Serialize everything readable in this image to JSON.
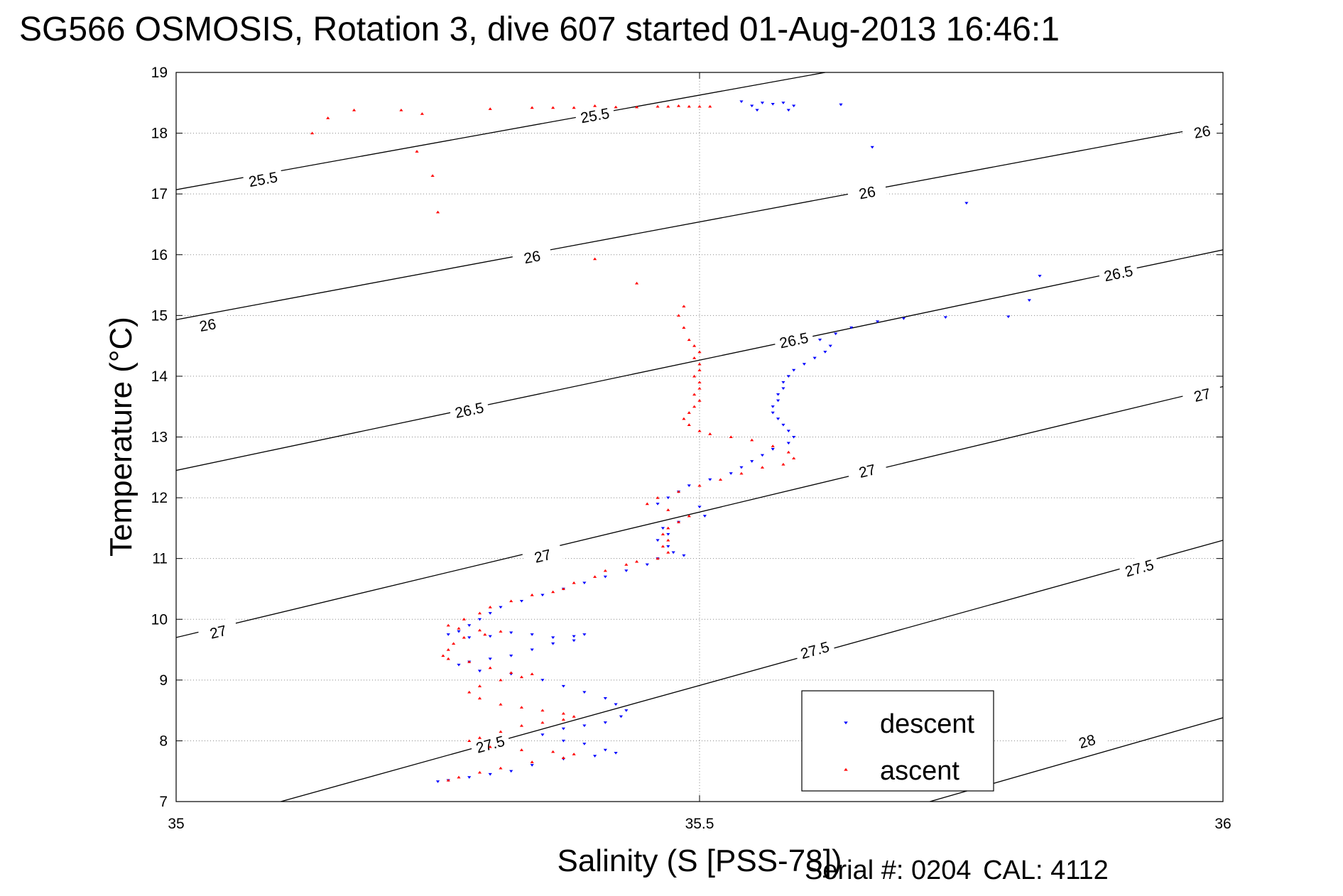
{
  "title": "SG566 OSMOSIS, Rotation 3, dive 607 started 01-Aug-2013 16:46:1",
  "footer": {
    "serial_label": "Serial #: 0204",
    "cal_label": "CAL: 4112"
  },
  "colors": {
    "descent": "#0000ff",
    "ascent": "#ff0000",
    "contour": "#000000",
    "grid": "#888888"
  },
  "chart_data": {
    "type": "scatter",
    "title": "SG566 OSMOSIS, Rotation 3, dive 607 started 01-Aug-2013 16:46:1",
    "xlabel": "Salinity (S [PSS-78])",
    "ylabel": "Temperature (°C)",
    "xlim": [
      35,
      36
    ],
    "ylim": [
      7,
      19
    ],
    "xticks": [
      35,
      35.5,
      36
    ],
    "xtick_labels": [
      "35",
      "35.5",
      "36"
    ],
    "yticks": [
      7,
      8,
      9,
      10,
      11,
      12,
      13,
      14,
      15,
      16,
      17,
      18,
      19
    ],
    "ytick_labels": [
      "7",
      "8",
      "9",
      "10",
      "11",
      "12",
      "13",
      "14",
      "15",
      "16",
      "17",
      "18",
      "19"
    ],
    "grid": true,
    "legend_position": "bottom-right",
    "contours": [
      {
        "level": "25.5",
        "points": [
          [
            35,
            17.07
          ],
          [
            35.62,
            19.0
          ]
        ],
        "labels": [
          [
            35.083,
            17.25
          ],
          [
            35.4,
            18.3
          ]
        ]
      },
      {
        "level": "26",
        "points": [
          [
            35,
            14.93
          ],
          [
            36,
            18.15
          ]
        ],
        "labels": [
          [
            35.03,
            14.85
          ],
          [
            35.34,
            15.97
          ],
          [
            35.66,
            17.03
          ],
          [
            35.98,
            18.03
          ]
        ]
      },
      {
        "level": "26.5",
        "points": [
          [
            35,
            12.45
          ],
          [
            36,
            16.08
          ]
        ],
        "labels": [
          [
            35.28,
            13.45
          ],
          [
            35.59,
            14.6
          ],
          [
            35.9,
            15.7
          ]
        ]
      },
      {
        "level": "27",
        "points": [
          [
            35,
            9.7
          ],
          [
            36,
            13.83
          ]
        ],
        "labels": [
          [
            35.04,
            9.8
          ],
          [
            35.35,
            11.05
          ],
          [
            35.66,
            12.45
          ],
          [
            35.98,
            13.7
          ]
        ]
      },
      {
        "level": "27.5",
        "points": [
          [
            35.1,
            7.0
          ],
          [
            36,
            11.3
          ]
        ],
        "labels": [
          [
            35.3,
            7.95
          ],
          [
            35.61,
            9.5
          ],
          [
            35.92,
            10.85
          ]
        ]
      },
      {
        "level": "28",
        "points": [
          [
            35.72,
            7.0
          ],
          [
            36,
            8.38
          ]
        ],
        "labels": [
          [
            35.87,
            8.0
          ]
        ]
      }
    ],
    "series": [
      {
        "name": "descent",
        "marker": "triangle-down",
        "points": [
          [
            35.54,
            18.52
          ],
          [
            35.55,
            18.45
          ],
          [
            35.56,
            18.5
          ],
          [
            35.57,
            18.48
          ],
          [
            35.58,
            18.5
          ],
          [
            35.555,
            18.38
          ],
          [
            35.585,
            18.38
          ],
          [
            35.59,
            18.45
          ],
          [
            35.635,
            18.47
          ],
          [
            35.665,
            17.77
          ],
          [
            35.755,
            16.85
          ],
          [
            35.825,
            15.65
          ],
          [
            35.815,
            15.25
          ],
          [
            35.795,
            14.98
          ],
          [
            35.735,
            14.97
          ],
          [
            35.695,
            14.95
          ],
          [
            35.67,
            14.9
          ],
          [
            35.645,
            14.8
          ],
          [
            35.63,
            14.7
          ],
          [
            35.615,
            14.6
          ],
          [
            35.625,
            14.5
          ],
          [
            35.62,
            14.4
          ],
          [
            35.61,
            14.3
          ],
          [
            35.6,
            14.2
          ],
          [
            35.59,
            14.1
          ],
          [
            35.585,
            14.0
          ],
          [
            35.58,
            13.9
          ],
          [
            35.58,
            13.8
          ],
          [
            35.575,
            13.7
          ],
          [
            35.575,
            13.6
          ],
          [
            35.57,
            13.5
          ],
          [
            35.57,
            13.4
          ],
          [
            35.575,
            13.3
          ],
          [
            35.58,
            13.2
          ],
          [
            35.585,
            13.1
          ],
          [
            35.59,
            13.0
          ],
          [
            35.585,
            12.9
          ],
          [
            35.57,
            12.8
          ],
          [
            35.56,
            12.7
          ],
          [
            35.55,
            12.6
          ],
          [
            35.54,
            12.5
          ],
          [
            35.53,
            12.4
          ],
          [
            35.51,
            12.3
          ],
          [
            35.49,
            12.2
          ],
          [
            35.48,
            12.1
          ],
          [
            35.47,
            12.0
          ],
          [
            35.46,
            11.9
          ],
          [
            35.5,
            11.85
          ],
          [
            35.505,
            11.7
          ],
          [
            35.48,
            11.6
          ],
          [
            35.465,
            11.5
          ],
          [
            35.47,
            11.4
          ],
          [
            35.46,
            11.3
          ],
          [
            35.47,
            11.2
          ],
          [
            35.475,
            11.1
          ],
          [
            35.485,
            11.05
          ],
          [
            35.46,
            11.0
          ],
          [
            35.45,
            10.9
          ],
          [
            35.43,
            10.8
          ],
          [
            35.41,
            10.7
          ],
          [
            35.39,
            10.6
          ],
          [
            35.37,
            10.5
          ],
          [
            35.35,
            10.4
          ],
          [
            35.33,
            10.3
          ],
          [
            35.31,
            10.2
          ],
          [
            35.3,
            10.1
          ],
          [
            35.29,
            10.0
          ],
          [
            35.28,
            9.9
          ],
          [
            35.27,
            9.8
          ],
          [
            35.26,
            9.75
          ],
          [
            35.28,
            9.7
          ],
          [
            35.3,
            9.72
          ],
          [
            35.32,
            9.78
          ],
          [
            35.34,
            9.75
          ],
          [
            35.36,
            9.7
          ],
          [
            35.38,
            9.72
          ],
          [
            35.39,
            9.75
          ],
          [
            35.38,
            9.65
          ],
          [
            35.36,
            9.6
          ],
          [
            35.34,
            9.5
          ],
          [
            35.32,
            9.4
          ],
          [
            35.3,
            9.35
          ],
          [
            35.28,
            9.3
          ],
          [
            35.27,
            9.25
          ],
          [
            35.29,
            9.15
          ],
          [
            35.32,
            9.1
          ],
          [
            35.35,
            9.0
          ],
          [
            35.37,
            8.9
          ],
          [
            35.39,
            8.8
          ],
          [
            35.41,
            8.7
          ],
          [
            35.42,
            8.6
          ],
          [
            35.43,
            8.5
          ],
          [
            35.425,
            8.4
          ],
          [
            35.41,
            8.3
          ],
          [
            35.39,
            8.25
          ],
          [
            35.37,
            8.2
          ],
          [
            35.35,
            8.1
          ],
          [
            35.37,
            8.0
          ],
          [
            35.39,
            7.95
          ],
          [
            35.41,
            7.85
          ],
          [
            35.42,
            7.8
          ],
          [
            35.4,
            7.75
          ],
          [
            35.37,
            7.7
          ],
          [
            35.34,
            7.6
          ],
          [
            35.32,
            7.5
          ],
          [
            35.3,
            7.45
          ],
          [
            35.28,
            7.4
          ],
          [
            35.26,
            7.35
          ],
          [
            35.25,
            7.33
          ]
        ]
      },
      {
        "name": "ascent",
        "marker": "triangle-up",
        "points": [
          [
            35.13,
            18.0
          ],
          [
            35.145,
            18.25
          ],
          [
            35.17,
            18.38
          ],
          [
            35.215,
            18.38
          ],
          [
            35.23,
            17.7
          ],
          [
            35.245,
            17.3
          ],
          [
            35.235,
            18.32
          ],
          [
            35.3,
            18.4
          ],
          [
            35.34,
            18.42
          ],
          [
            35.36,
            18.42
          ],
          [
            35.38,
            18.42
          ],
          [
            35.4,
            18.45
          ],
          [
            35.42,
            18.43
          ],
          [
            35.44,
            18.43
          ],
          [
            35.46,
            18.44
          ],
          [
            35.47,
            18.44
          ],
          [
            35.48,
            18.45
          ],
          [
            35.49,
            18.44
          ],
          [
            35.5,
            18.44
          ],
          [
            35.51,
            18.44
          ],
          [
            35.25,
            16.7
          ],
          [
            35.4,
            15.93
          ],
          [
            35.44,
            15.53
          ],
          [
            35.485,
            15.15
          ],
          [
            35.48,
            15.0
          ],
          [
            35.485,
            14.8
          ],
          [
            35.49,
            14.6
          ],
          [
            35.495,
            14.5
          ],
          [
            35.5,
            14.4
          ],
          [
            35.495,
            14.3
          ],
          [
            35.5,
            14.2
          ],
          [
            35.5,
            14.1
          ],
          [
            35.495,
            14.0
          ],
          [
            35.5,
            13.9
          ],
          [
            35.5,
            13.8
          ],
          [
            35.495,
            13.7
          ],
          [
            35.5,
            13.6
          ],
          [
            35.495,
            13.5
          ],
          [
            35.49,
            13.4
          ],
          [
            35.485,
            13.3
          ],
          [
            35.49,
            13.2
          ],
          [
            35.5,
            13.1
          ],
          [
            35.51,
            13.05
          ],
          [
            35.53,
            13.0
          ],
          [
            35.55,
            12.95
          ],
          [
            35.57,
            12.85
          ],
          [
            35.585,
            12.75
          ],
          [
            35.59,
            12.65
          ],
          [
            35.58,
            12.55
          ],
          [
            35.56,
            12.5
          ],
          [
            35.54,
            12.4
          ],
          [
            35.52,
            12.3
          ],
          [
            35.5,
            12.2
          ],
          [
            35.48,
            12.1
          ],
          [
            35.46,
            12.0
          ],
          [
            35.45,
            11.9
          ],
          [
            35.47,
            11.8
          ],
          [
            35.49,
            11.7
          ],
          [
            35.48,
            11.6
          ],
          [
            35.47,
            11.5
          ],
          [
            35.465,
            11.4
          ],
          [
            35.47,
            11.3
          ],
          [
            35.465,
            11.2
          ],
          [
            35.47,
            11.1
          ],
          [
            35.46,
            11.0
          ],
          [
            35.44,
            10.95
          ],
          [
            35.43,
            10.9
          ],
          [
            35.41,
            10.8
          ],
          [
            35.4,
            10.7
          ],
          [
            35.38,
            10.6
          ],
          [
            35.37,
            10.5
          ],
          [
            35.36,
            10.45
          ],
          [
            35.34,
            10.4
          ],
          [
            35.32,
            10.3
          ],
          [
            35.3,
            10.2
          ],
          [
            35.29,
            10.1
          ],
          [
            35.275,
            10.0
          ],
          [
            35.26,
            9.9
          ],
          [
            35.27,
            9.85
          ],
          [
            35.29,
            9.82
          ],
          [
            35.31,
            9.8
          ],
          [
            35.295,
            9.75
          ],
          [
            35.275,
            9.7
          ],
          [
            35.265,
            9.6
          ],
          [
            35.26,
            9.5
          ],
          [
            35.255,
            9.4
          ],
          [
            35.26,
            9.35
          ],
          [
            35.28,
            9.3
          ],
          [
            35.3,
            9.2
          ],
          [
            35.32,
            9.12
          ],
          [
            35.34,
            9.1
          ],
          [
            35.33,
            9.05
          ],
          [
            35.31,
            9.0
          ],
          [
            35.29,
            8.9
          ],
          [
            35.28,
            8.8
          ],
          [
            35.29,
            8.7
          ],
          [
            35.31,
            8.6
          ],
          [
            35.33,
            8.55
          ],
          [
            35.35,
            8.5
          ],
          [
            35.37,
            8.45
          ],
          [
            35.38,
            8.4
          ],
          [
            35.37,
            8.35
          ],
          [
            35.35,
            8.3
          ],
          [
            35.33,
            8.25
          ],
          [
            35.31,
            8.15
          ],
          [
            35.29,
            8.05
          ],
          [
            35.28,
            8.0
          ],
          [
            35.3,
            7.9
          ],
          [
            35.33,
            7.85
          ],
          [
            35.36,
            7.82
          ],
          [
            35.38,
            7.78
          ],
          [
            35.37,
            7.72
          ],
          [
            35.34,
            7.65
          ],
          [
            35.31,
            7.55
          ],
          [
            35.29,
            7.48
          ],
          [
            35.27,
            7.4
          ],
          [
            35.26,
            7.35
          ]
        ]
      }
    ]
  }
}
